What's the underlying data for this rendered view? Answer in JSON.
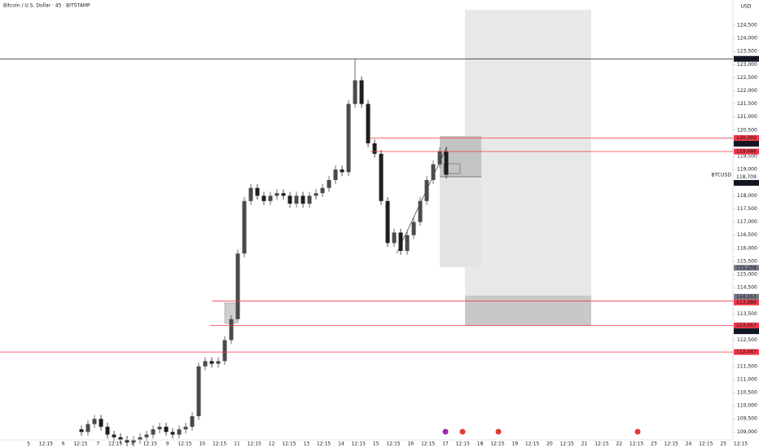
{
  "chart_data": {
    "type": "candlestick",
    "title": "Bitcoin / U.S. Dollar · 45 · BITSTAMP",
    "currency": "USD",
    "symbol": "BTCUSD",
    "up_color": "#4a4a4a",
    "down_color": "#1e1e1e",
    "ylim": [
      108700,
      125460
    ],
    "yticks": [
      {
        "value": 109000,
        "label": "109,000"
      },
      {
        "value": 109500,
        "label": "109,500"
      },
      {
        "value": 110000,
        "label": "110,000"
      },
      {
        "value": 110500,
        "label": "110,500"
      },
      {
        "value": 111000,
        "label": "111,000"
      },
      {
        "value": 111500,
        "label": "111,500"
      },
      {
        "value": 112000,
        "label": "112,000"
      },
      {
        "value": 112500,
        "label": "112,500"
      },
      {
        "value": 113000,
        "label": "113,000"
      },
      {
        "value": 113500,
        "label": "113,500"
      },
      {
        "value": 114000,
        "label": "114,000"
      },
      {
        "value": 114500,
        "label": "114,500"
      },
      {
        "value": 115000,
        "label": "115,000"
      },
      {
        "value": 115500,
        "label": "115,500"
      },
      {
        "value": 116000,
        "label": "116,000"
      },
      {
        "value": 116500,
        "label": "116,500"
      },
      {
        "value": 117000,
        "label": "117,000"
      },
      {
        "value": 117500,
        "label": "117,500"
      },
      {
        "value": 118000,
        "label": "118,000"
      },
      {
        "value": 118500,
        "label": "118,500"
      },
      {
        "value": 119000,
        "label": "119,000"
      },
      {
        "value": 119500,
        "label": "119,500"
      },
      {
        "value": 120000,
        "label": "120,000"
      },
      {
        "value": 120500,
        "label": "120,500"
      },
      {
        "value": 121000,
        "label": "121,000"
      },
      {
        "value": 121500,
        "label": "121,500"
      },
      {
        "value": 122000,
        "label": "122,000"
      },
      {
        "value": 122500,
        "label": "122,500"
      },
      {
        "value": 123000,
        "label": "123,000"
      },
      {
        "value": 123500,
        "label": "123,500"
      },
      {
        "value": 124000,
        "label": "124,000"
      },
      {
        "value": 124500,
        "label": "124,500"
      }
    ],
    "x_labels": [
      "5",
      "12:15",
      "6",
      "12:15",
      "7",
      "12:15",
      "8",
      "12:15",
      "9",
      "12:15",
      "10",
      "12:15",
      "11",
      "12:15",
      "12",
      "12:15",
      "13",
      "12:15",
      "14",
      "12:15",
      "15",
      "12:15",
      "16",
      "12:15",
      "17",
      "12:15",
      "18",
      "12:15",
      "19",
      "12:15",
      "20",
      "12:15",
      "21",
      "12:15",
      "22",
      "12:15",
      "23",
      "12:15",
      "24",
      "12:15",
      "25",
      "12:15"
    ],
    "candles": [
      [
        109100,
        109250,
        108850,
        109000
      ],
      [
        109000,
        109450,
        108850,
        109300
      ],
      [
        109300,
        109650,
        109150,
        109500
      ],
      [
        109500,
        109650,
        109050,
        109200
      ],
      [
        109200,
        109350,
        108750,
        108900
      ],
      [
        108900,
        109050,
        108650,
        108800
      ],
      [
        108800,
        108950,
        108550,
        108700
      ],
      [
        108700,
        108850,
        108450,
        108600
      ],
      [
        108600,
        108850,
        108450,
        108700
      ],
      [
        108700,
        108950,
        108550,
        108800
      ],
      [
        108800,
        109050,
        108650,
        108900
      ],
      [
        108900,
        109250,
        108750,
        109100
      ],
      [
        109100,
        109350,
        108950,
        109200
      ],
      [
        109200,
        109350,
        108850,
        109000
      ],
      [
        109000,
        109150,
        108750,
        108900
      ],
      [
        108900,
        109250,
        108750,
        109100
      ],
      [
        109100,
        109350,
        108950,
        109200
      ],
      [
        109200,
        109750,
        109050,
        109600
      ],
      [
        109600,
        111650,
        109450,
        111500
      ],
      [
        111500,
        111850,
        111350,
        111700
      ],
      [
        111700,
        111850,
        111450,
        111600
      ],
      [
        111600,
        111850,
        111450,
        111700
      ],
      [
        111700,
        112650,
        111550,
        112500
      ],
      [
        112500,
        113450,
        112350,
        113300
      ],
      [
        113300,
        115950,
        113150,
        115800
      ],
      [
        115800,
        117950,
        115650,
        117800
      ],
      [
        117800,
        118450,
        117650,
        118300
      ],
      [
        118300,
        118450,
        117850,
        118000
      ],
      [
        118000,
        118150,
        117650,
        117800
      ],
      [
        117800,
        118150,
        117650,
        118000
      ],
      [
        118000,
        118250,
        117850,
        118100
      ],
      [
        118100,
        118250,
        117850,
        118000
      ],
      [
        118000,
        118150,
        117550,
        117700
      ],
      [
        117700,
        118150,
        117550,
        118000
      ],
      [
        118000,
        118150,
        117550,
        117700
      ],
      [
        117700,
        118150,
        117550,
        118000
      ],
      [
        118000,
        118250,
        117850,
        118100
      ],
      [
        118100,
        118450,
        117950,
        118300
      ],
      [
        118300,
        118750,
        118150,
        118600
      ],
      [
        118600,
        119150,
        118450,
        119000
      ],
      [
        119000,
        119150,
        118750,
        118900
      ],
      [
        118900,
        121650,
        118750,
        121500
      ],
      [
        121500,
        123200,
        121350,
        122400
      ],
      [
        122400,
        122550,
        121350,
        121500
      ],
      [
        121500,
        121650,
        119850,
        120000
      ],
      [
        120000,
        120150,
        119450,
        119600
      ],
      [
        119600,
        119750,
        117650,
        117800
      ],
      [
        117800,
        117950,
        116050,
        116200
      ],
      [
        116200,
        116750,
        116050,
        116600
      ],
      [
        116600,
        116750,
        115750,
        115900
      ],
      [
        115900,
        116650,
        115750,
        116500
      ],
      [
        116500,
        117150,
        116350,
        117000
      ],
      [
        117000,
        117950,
        116850,
        117800
      ],
      [
        117800,
        118750,
        117650,
        118600
      ],
      [
        118600,
        119350,
        118450,
        119200
      ],
      [
        119200,
        119850,
        119050,
        119700
      ],
      [
        119700,
        119850,
        118650,
        118800
      ]
    ],
    "price_labels": [
      {
        "value": 123218,
        "label": "123,218",
        "bg": "#131722",
        "line": "#131722"
      },
      {
        "value": 120202,
        "label": "120,202",
        "bg": "#f23645",
        "line": "#f23645"
      },
      {
        "value": 120219,
        "label": "120,219",
        "bg": "#131722"
      },
      {
        "value": 119686,
        "label": "119,686",
        "bg": "#f23645",
        "line": "#f23645"
      },
      {
        "value": 118709,
        "label": "118,709"
      },
      {
        "value": 118704,
        "label": "118,704",
        "bg": "#131722"
      },
      {
        "value": 115256,
        "label": "115,256",
        "bg": "#787b86"
      },
      {
        "value": 114153,
        "label": "114,153",
        "bg": "#787b86"
      },
      {
        "value": 113986,
        "label": "113,986",
        "bg": "#f23645",
        "line": "#f23645"
      },
      {
        "value": 113057,
        "label": "113,057",
        "bg": "#f23645",
        "line": "#f23645"
      },
      {
        "value": 112993,
        "label": "112,993",
        "bg": "#131722"
      },
      {
        "value": 112047,
        "label": "112,047",
        "bg": "#f23645",
        "line": "#f23645"
      }
    ]
  }
}
